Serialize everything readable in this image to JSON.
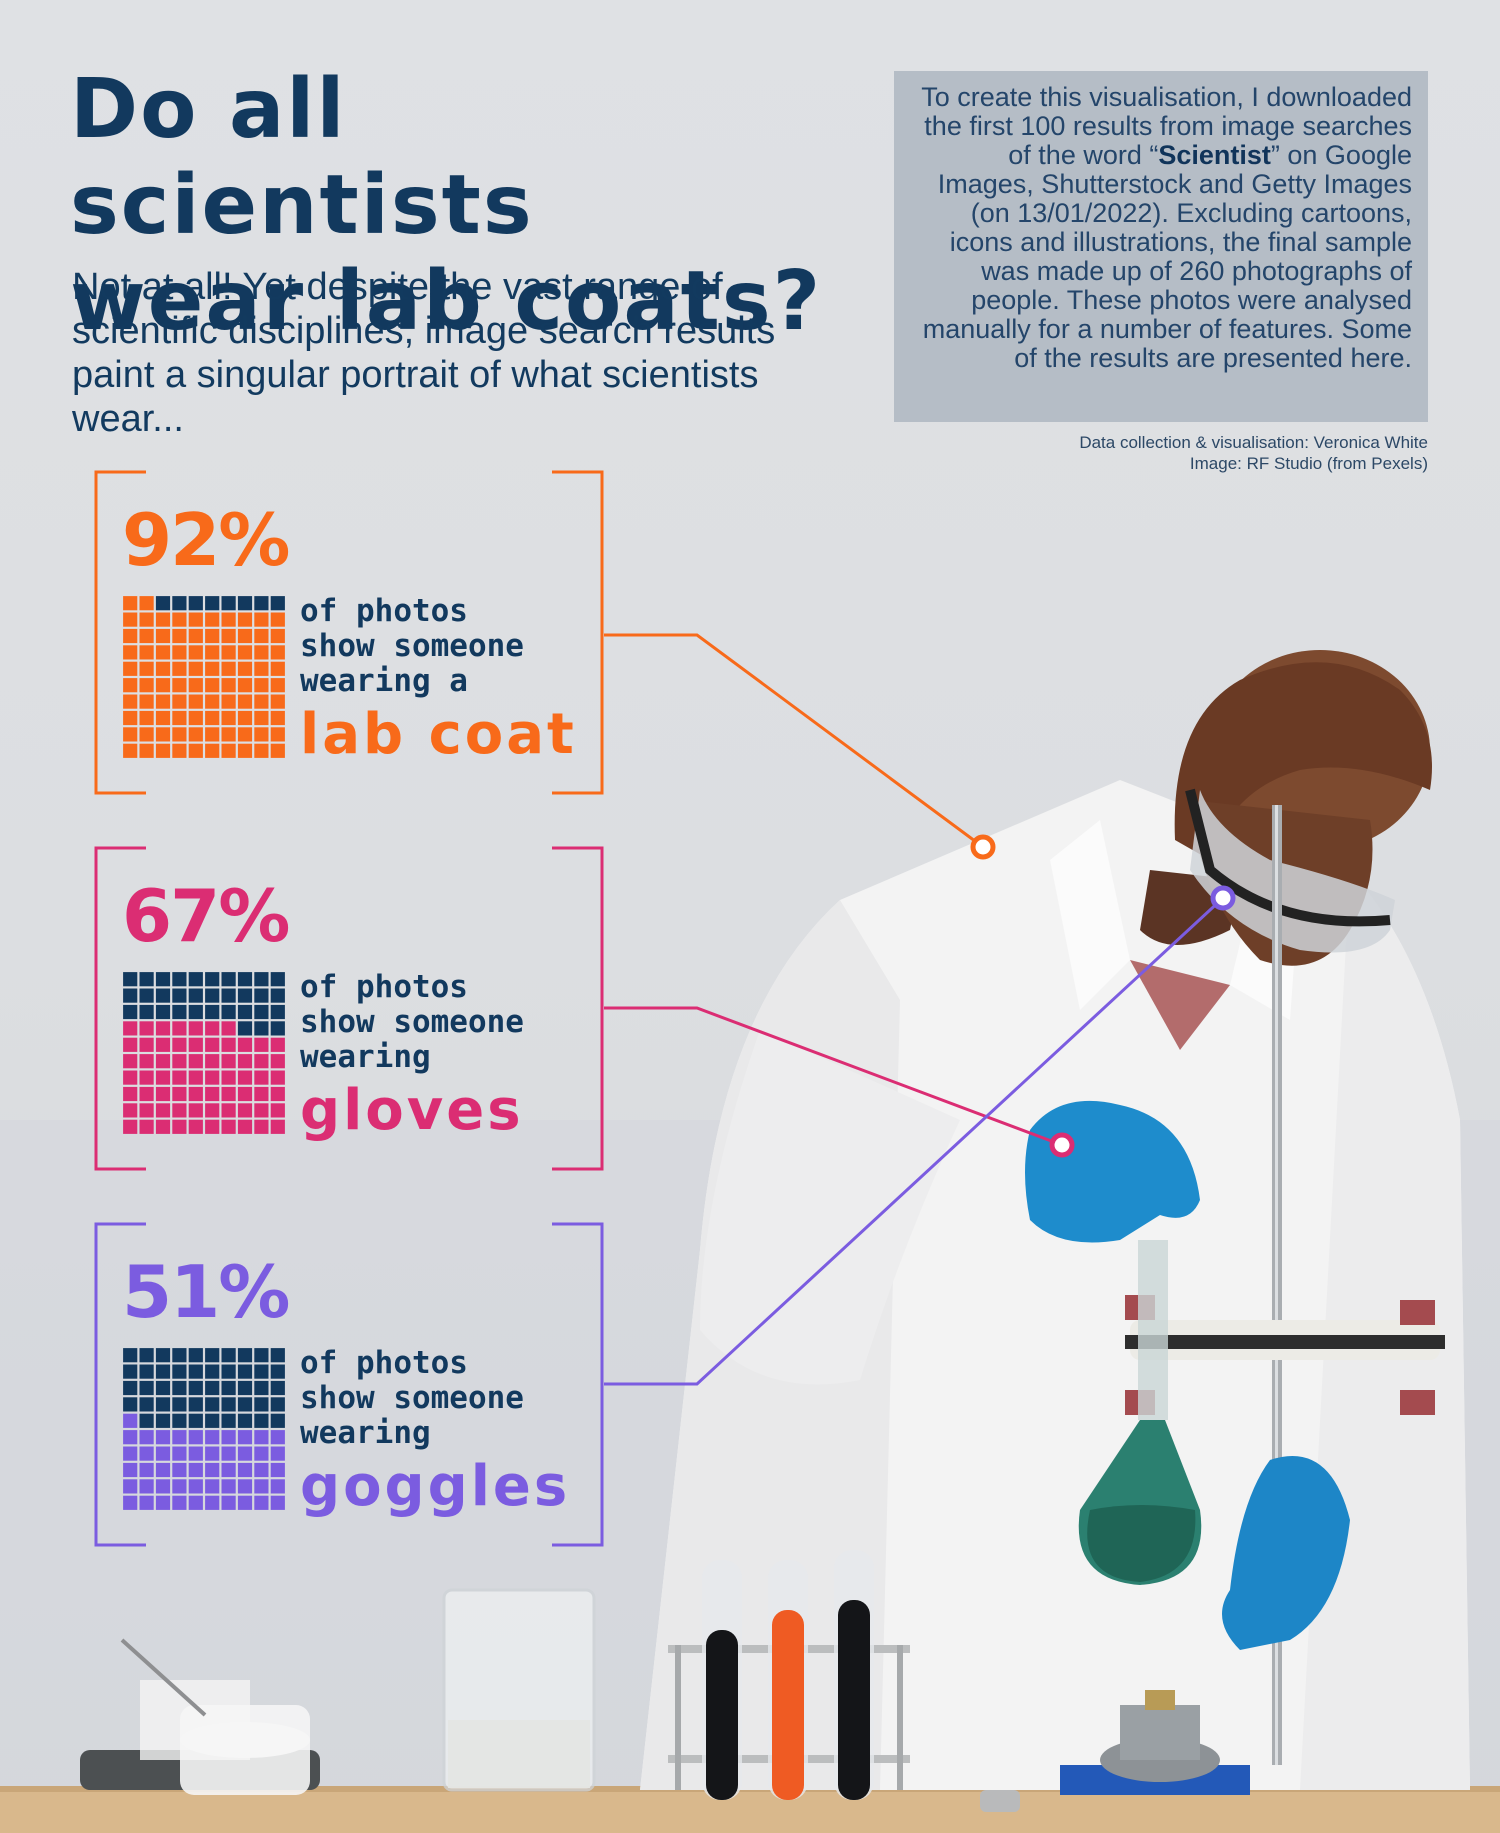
{
  "title": "Do all scientists\nwear lab coats?",
  "subtitle": "Not at all! Yet despite the vast range of scientific disciplines, image search results paint a singular portrait of what scientists wear...",
  "methodology": {
    "before": "To create this visualisation, I downloaded the first 100 results from image searches of the word “",
    "keyword": "Scientist",
    "after": "” on Google Images, Shutterstock and Getty Images (on 13/01/2022). Excluding cartoons, icons and illustrations, the final sample was made up of 260 photographs of people. These photos were analysed manually for a number of features. Some of the results are presented here."
  },
  "credits": {
    "data": "Data collection & visualisation: Veronica White",
    "image": "Image: RF Studio (from Pexels)"
  },
  "colors": {
    "lab_coat": "#f86a1a",
    "gloves": "#db2d73",
    "goggles": "#7b5ce0",
    "navy": "#12395e"
  },
  "chart_data": [
    {
      "type": "waffle",
      "value_percent": 92,
      "value_label": "92%",
      "label": "of photos\nshow someone\nwearing a",
      "item": "lab coat",
      "grid": [
        10,
        10
      ],
      "total": 100
    },
    {
      "type": "waffle",
      "value_percent": 67,
      "value_label": "67%",
      "label": "of photos\nshow someone\nwearing",
      "item": "gloves",
      "grid": [
        10,
        10
      ],
      "total": 100
    },
    {
      "type": "waffle",
      "value_percent": 51,
      "value_label": "51%",
      "label": "of photos\nshow someone\nwearing",
      "item": "goggles",
      "grid": [
        10,
        10
      ],
      "total": 100
    }
  ]
}
